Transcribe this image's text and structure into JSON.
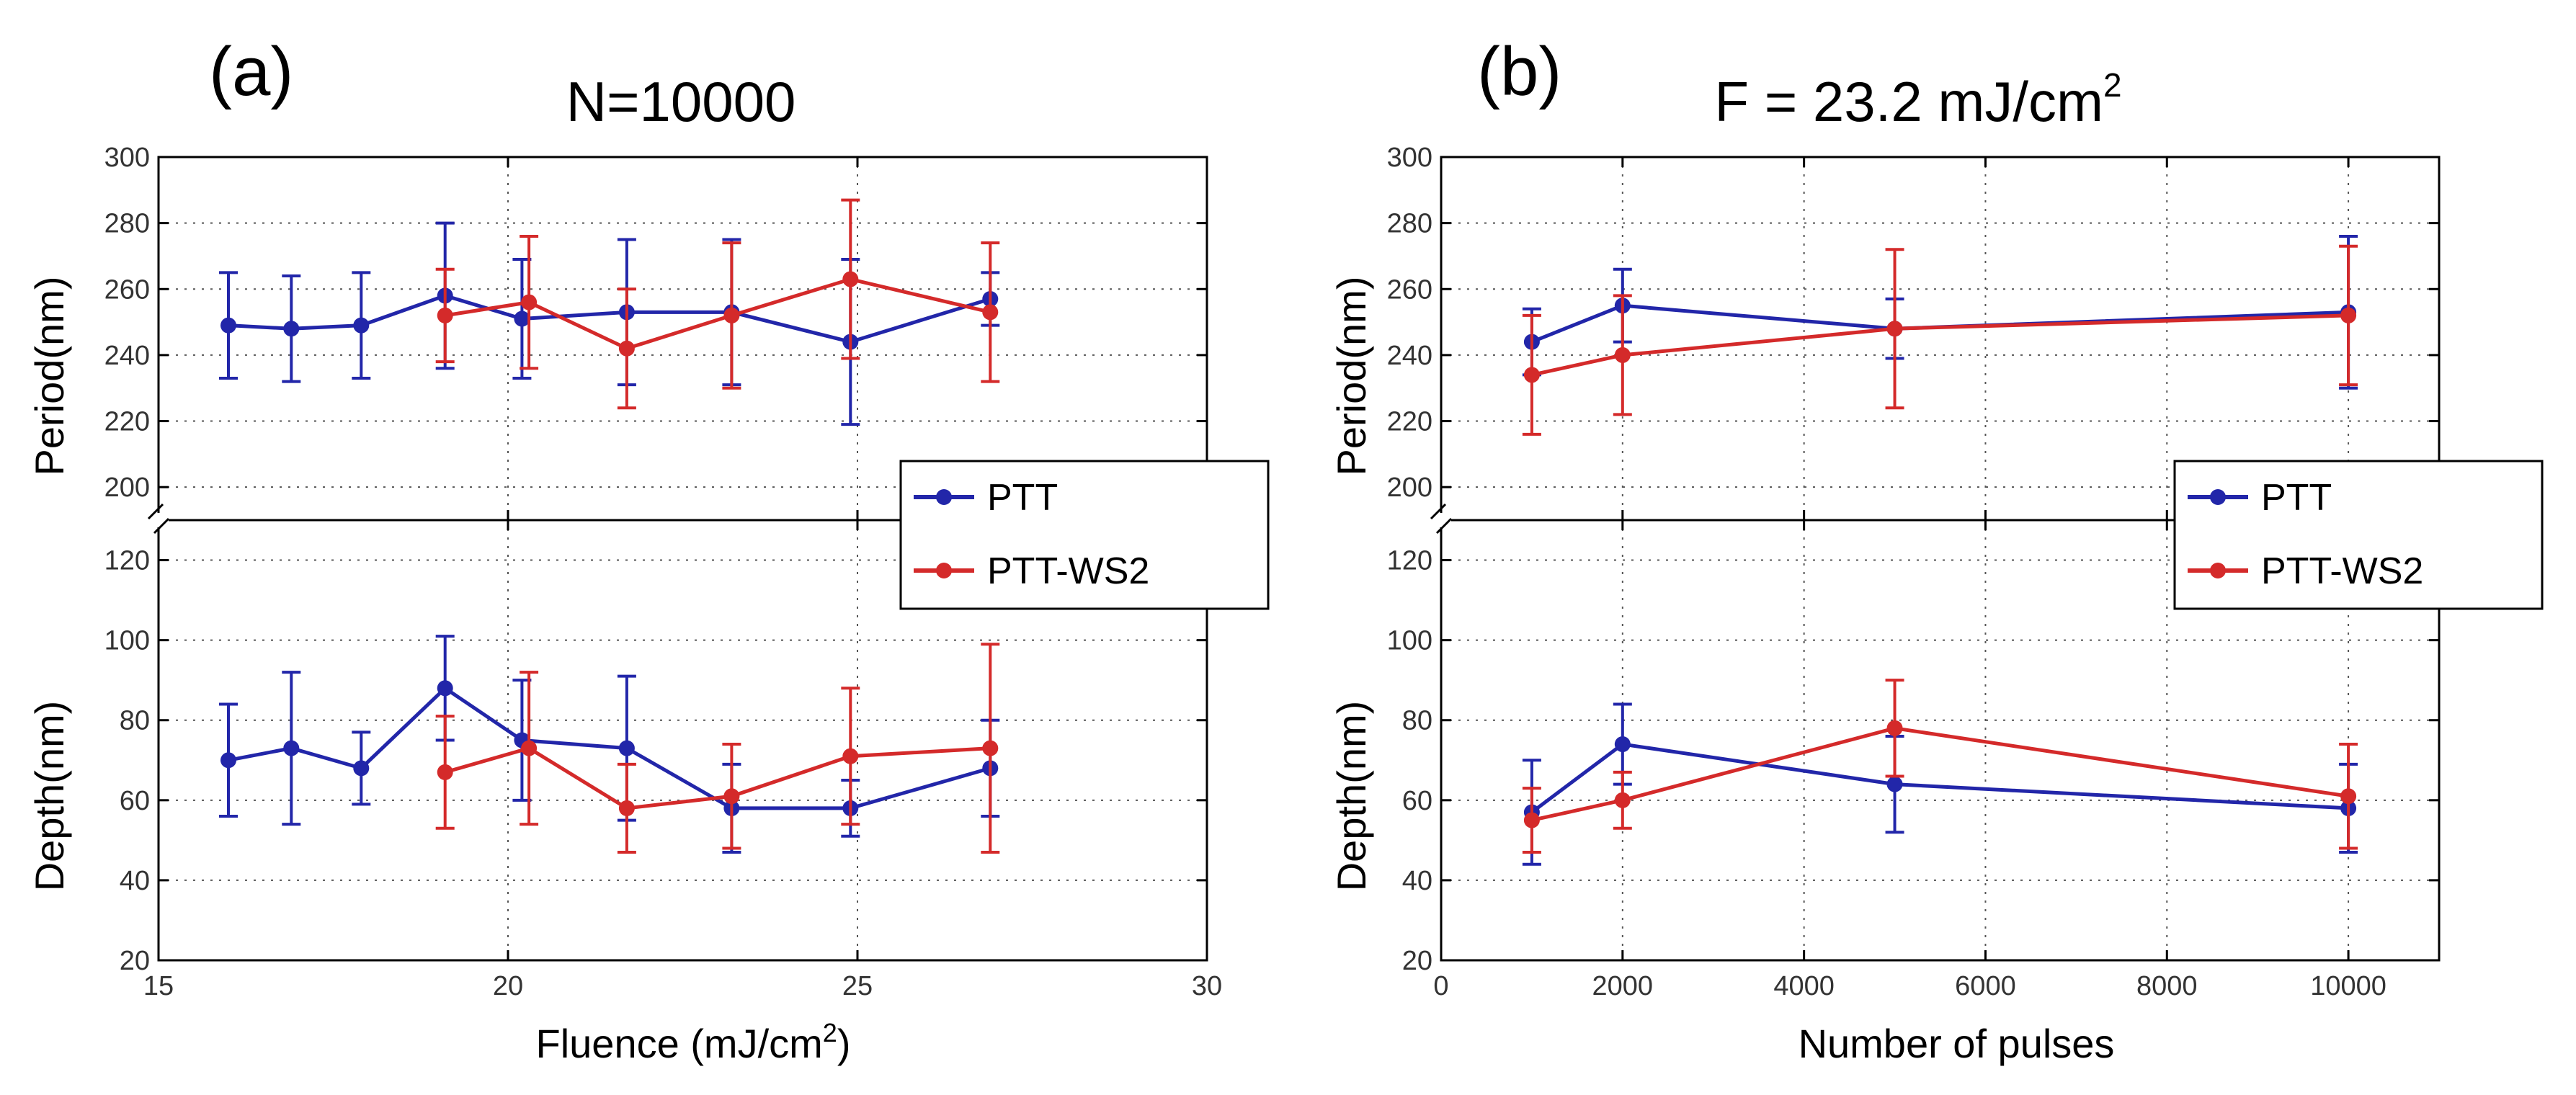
{
  "colors": {
    "PTT": "#2226a9",
    "PTT-WS2": "#d42a2a",
    "axes": "#000000",
    "grid": "#555555"
  },
  "chart_data": [
    {
      "id": "a",
      "type": "line",
      "panel_label": "(a)",
      "title": "N=10000",
      "xlabel": "Fluence (mJ/cm",
      "xlabel_sup": "2",
      "xlabel_tail": ")",
      "xlim": [
        15,
        30
      ],
      "xticks": [
        15,
        20,
        25,
        30
      ],
      "top": {
        "ylabel": "Period(nm)",
        "ylim": [
          190,
          300
        ],
        "yticks": [
          200,
          220,
          240,
          260,
          280,
          300
        ],
        "series": [
          {
            "name": "PTT",
            "x": [
              16,
              16.9,
              17.9,
              19.1,
              20.2,
              21.7,
              23.2,
              24.9,
              26.9
            ],
            "y": [
              249,
              248,
              249,
              258,
              251,
              253,
              253,
              244,
              257
            ],
            "err": [
              16,
              16,
              16,
              22,
              18,
              22,
              22,
              25,
              8
            ]
          },
          {
            "name": "PTT-WS2",
            "x": [
              19.1,
              20.3,
              21.7,
              23.2,
              24.9,
              26.9
            ],
            "y": [
              252,
              256,
              242,
              252,
              263,
              253
            ],
            "err": [
              14,
              20,
              18,
              22,
              24,
              21
            ]
          }
        ]
      },
      "bottom": {
        "ylabel": "Depth(nm)",
        "ylim": [
          20,
          130
        ],
        "yticks": [
          20,
          40,
          60,
          80,
          100,
          120
        ],
        "series": [
          {
            "name": "PTT",
            "x": [
              16,
              16.9,
              17.9,
              19.1,
              20.2,
              21.7,
              23.2,
              24.9,
              26.9
            ],
            "y": [
              70,
              73,
              68,
              88,
              75,
              73,
              58,
              58,
              68
            ],
            "err": [
              14,
              19,
              9,
              13,
              15,
              18,
              11,
              7,
              12
            ]
          },
          {
            "name": "PTT-WS2",
            "x": [
              19.1,
              20.3,
              21.7,
              23.2,
              24.9,
              26.9
            ],
            "y": [
              67,
              73,
              58,
              61,
              71,
              73
            ],
            "err": [
              14,
              19,
              11,
              13,
              17,
              26
            ]
          }
        ]
      },
      "legend": [
        "PTT",
        "PTT-WS2"
      ],
      "legend_position": "right, between subplots",
      "grid": true
    },
    {
      "id": "b",
      "type": "line",
      "panel_label": "(b)",
      "title": "F = 23.2 mJ/cm",
      "title_sup": "2",
      "xlabel": "Number of pulses",
      "xlim": [
        0,
        11000
      ],
      "xticks": [
        0,
        2000,
        4000,
        6000,
        8000,
        10000
      ],
      "top": {
        "ylabel": "Period(nm)",
        "ylim": [
          190,
          300
        ],
        "yticks": [
          200,
          220,
          240,
          260,
          280,
          300
        ],
        "series": [
          {
            "name": "PTT",
            "x": [
              1000,
              2000,
              5000,
              10000
            ],
            "y": [
              244,
              255,
              248,
              253
            ],
            "err": [
              10,
              11,
              9,
              23
            ]
          },
          {
            "name": "PTT-WS2",
            "x": [
              1000,
              2000,
              5000,
              10000
            ],
            "y": [
              234,
              240,
              248,
              252
            ],
            "err": [
              18,
              18,
              24,
              21
            ]
          }
        ]
      },
      "bottom": {
        "ylabel": "Depth(nm)",
        "ylim": [
          20,
          130
        ],
        "yticks": [
          20,
          40,
          60,
          80,
          100,
          120
        ],
        "series": [
          {
            "name": "PTT",
            "x": [
              1000,
              2000,
              5000,
              10000
            ],
            "y": [
              57,
              74,
              64,
              58
            ],
            "err": [
              13,
              10,
              12,
              11
            ]
          },
          {
            "name": "PTT-WS2",
            "x": [
              1000,
              2000,
              5000,
              10000
            ],
            "y": [
              55,
              60,
              78,
              61
            ],
            "err": [
              8,
              7,
              12,
              13
            ]
          }
        ]
      },
      "legend": [
        "PTT",
        "PTT-WS2"
      ],
      "legend_position": "right, between subplots",
      "grid": true
    }
  ]
}
